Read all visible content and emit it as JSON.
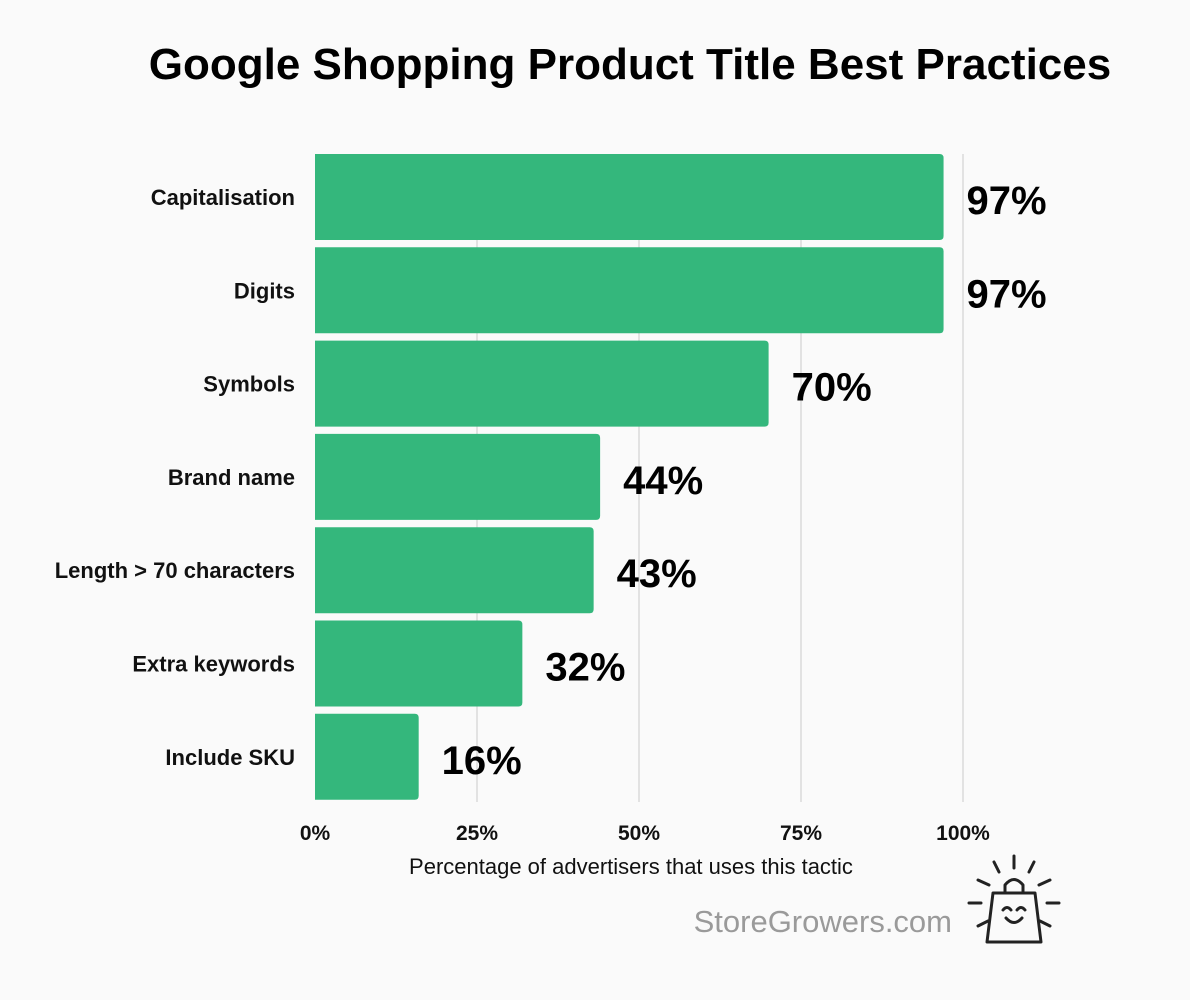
{
  "chart_data": {
    "type": "bar",
    "orientation": "horizontal",
    "title": "Google Shopping Product Title Best Practices",
    "categories": [
      "Capitalisation",
      "Digits",
      "Symbols",
      "Brand name",
      "Length > 70 characters",
      "Extra keywords",
      "Include SKU"
    ],
    "values": [
      97,
      97,
      70,
      44,
      43,
      32,
      16
    ],
    "value_labels": [
      "97%",
      "97%",
      "70%",
      "44%",
      "43%",
      "32%",
      "16%"
    ],
    "xlabel": "Percentage of advertisers that uses this tactic",
    "ylabel": "",
    "xlim": [
      0,
      100
    ],
    "x_ticks": [
      0,
      25,
      50,
      75,
      100
    ],
    "x_tick_labels": [
      "0%",
      "25%",
      "50%",
      "75%",
      "100%"
    ],
    "grid": "vertical",
    "bar_color": "#34b77c"
  },
  "branding": {
    "text": "StoreGrowers.com",
    "icon": "shopping-bag-smiley-icon"
  }
}
